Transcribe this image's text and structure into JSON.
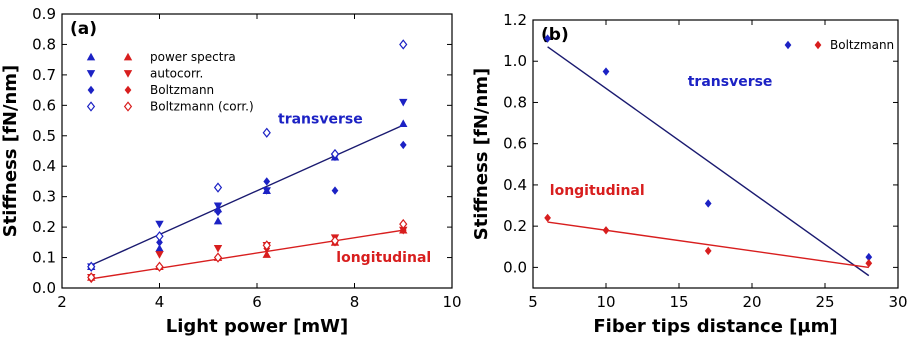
{
  "colors": {
    "transverse": "#1c22c4",
    "longitudinal": "#d81e1e",
    "fit_transverse": "#1a1a70",
    "fit_longitudinal": "#d81e1e"
  },
  "chart_data": [
    {
      "type": "scatter",
      "panel_label": "(a)",
      "xlabel": "Light power [mW]",
      "ylabel": "Stiffness [fN/nm]",
      "xlim": [
        2,
        10
      ],
      "ylim": [
        0,
        0.9
      ],
      "xticks": [
        "2",
        "4",
        "6",
        "8",
        "10"
      ],
      "yticks": [
        "0.0",
        "0.1",
        "0.2",
        "0.3",
        "0.4",
        "0.5",
        "0.6",
        "0.7",
        "0.8",
        "0.9"
      ],
      "legend": {
        "placement": "top-left",
        "entries": [
          {
            "label": "power spectra",
            "marker": "triangle-up"
          },
          {
            "label": "autocorr.",
            "marker": "triangle-down"
          },
          {
            "label": "Boltzmann",
            "marker": "diamond"
          },
          {
            "label": "Boltzmann (corr.)",
            "marker": "diamond-open"
          }
        ]
      },
      "annotations": [
        {
          "text": "transverse",
          "x": 7.3,
          "y": 0.54,
          "color_key": "transverse"
        },
        {
          "text": "longitudinal",
          "x": 8.6,
          "y": 0.085,
          "color_key": "longitudinal"
        }
      ],
      "series": [
        {
          "group": "transverse",
          "marker": "triangle-up",
          "points": [
            [
              2.6,
              0.07
            ],
            [
              4.0,
              0.13
            ],
            [
              5.2,
              0.22
            ],
            [
              5.2,
              0.26
            ],
            [
              6.2,
              0.32
            ],
            [
              7.6,
              0.43
            ],
            [
              9.0,
              0.54
            ]
          ]
        },
        {
          "group": "transverse",
          "marker": "triangle-down",
          "points": [
            [
              2.6,
              0.07
            ],
            [
              4.0,
              0.21
            ],
            [
              5.2,
              0.27
            ],
            [
              6.2,
              0.32
            ],
            [
              7.6,
              0.43
            ],
            [
              9.0,
              0.61
            ]
          ]
        },
        {
          "group": "transverse",
          "marker": "diamond",
          "points": [
            [
              2.6,
              0.07
            ],
            [
              4.0,
              0.15
            ],
            [
              5.2,
              0.25
            ],
            [
              6.2,
              0.35
            ],
            [
              7.6,
              0.32
            ],
            [
              9.0,
              0.47
            ]
          ]
        },
        {
          "group": "transverse",
          "marker": "diamond-open",
          "points": [
            [
              2.6,
              0.07
            ],
            [
              4.0,
              0.17
            ],
            [
              5.2,
              0.33
            ],
            [
              6.2,
              0.51
            ],
            [
              7.6,
              0.44
            ],
            [
              9.0,
              0.8
            ]
          ]
        },
        {
          "group": "longitudinal",
          "marker": "triangle-up",
          "points": [
            [
              2.6,
              0.035
            ],
            [
              4.0,
              0.07
            ],
            [
              5.2,
              0.1
            ],
            [
              6.2,
              0.11
            ],
            [
              7.6,
              0.15
            ],
            [
              9.0,
              0.19
            ]
          ]
        },
        {
          "group": "longitudinal",
          "marker": "triangle-down",
          "points": [
            [
              2.6,
              0.035
            ],
            [
              4.0,
              0.11
            ],
            [
              5.2,
              0.13
            ],
            [
              6.2,
              0.14
            ],
            [
              7.6,
              0.165
            ],
            [
              9.0,
              0.19
            ]
          ]
        },
        {
          "group": "longitudinal",
          "marker": "diamond",
          "points": [
            [
              2.6,
              0.03
            ],
            [
              4.0,
              0.07
            ],
            [
              5.2,
              0.1
            ],
            [
              6.2,
              0.13
            ],
            [
              7.6,
              0.15
            ],
            [
              9.0,
              0.19
            ]
          ]
        },
        {
          "group": "longitudinal",
          "marker": "diamond-open",
          "points": [
            [
              2.6,
              0.035
            ],
            [
              4.0,
              0.07
            ],
            [
              5.2,
              0.1
            ],
            [
              6.2,
              0.14
            ],
            [
              7.6,
              0.155
            ],
            [
              9.0,
              0.21
            ]
          ]
        }
      ],
      "fits": [
        {
          "group": "transverse",
          "x": [
            2.6,
            9.0
          ],
          "y": [
            0.075,
            0.535
          ]
        },
        {
          "group": "longitudinal",
          "x": [
            2.6,
            9.0
          ],
          "y": [
            0.03,
            0.19
          ]
        }
      ]
    },
    {
      "type": "scatter",
      "panel_label": "(b)",
      "xlabel": "Fiber tips distance [µm]",
      "ylabel": "Stiffness [fN/nm]",
      "xlim": [
        5,
        30
      ],
      "ylim": [
        -0.1,
        1.2
      ],
      "xticks": [
        "5",
        "10",
        "15",
        "20",
        "25",
        "30"
      ],
      "yticks": [
        "0.0",
        "0.2",
        "0.4",
        "0.6",
        "0.8",
        "1.0",
        "1.2"
      ],
      "legend": {
        "placement": "top-right",
        "entries": [
          {
            "label": "Boltzmann",
            "marker": "diamond"
          }
        ]
      },
      "annotations": [
        {
          "text": "transverse",
          "x": 18.5,
          "y": 0.88,
          "color_key": "transverse"
        },
        {
          "text": "longitudinal",
          "x": 9.4,
          "y": 0.35,
          "color_key": "longitudinal"
        }
      ],
      "series": [
        {
          "group": "transverse",
          "marker": "diamond",
          "points": [
            [
              6,
              1.11
            ],
            [
              10,
              0.95
            ],
            [
              17,
              0.31
            ],
            [
              28,
              0.05
            ]
          ]
        },
        {
          "group": "longitudinal",
          "marker": "diamond",
          "points": [
            [
              6,
              0.24
            ],
            [
              10,
              0.18
            ],
            [
              17,
              0.08
            ],
            [
              28,
              0.02
            ]
          ]
        }
      ],
      "fits": [
        {
          "group": "transverse",
          "x": [
            6,
            28
          ],
          "y": [
            1.07,
            -0.04
          ]
        },
        {
          "group": "longitudinal",
          "x": [
            6,
            28
          ],
          "y": [
            0.22,
            0.0
          ]
        }
      ]
    }
  ]
}
